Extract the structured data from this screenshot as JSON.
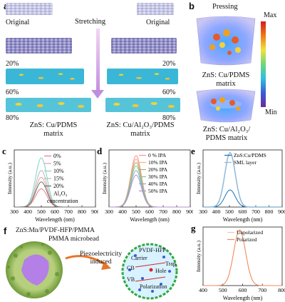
{
  "panel_a": {
    "label": "a",
    "original_left": "Original",
    "original_right": "Original",
    "stretching": "Stretching",
    "strain_left": [
      "20%",
      "60%",
      "80%"
    ],
    "strain_right": [
      "20%",
      "60%",
      "80%"
    ],
    "matrix_left_line1": "ZnS: Cu/PDMS",
    "matrix_left_line2": "matrix",
    "matrix_right_line1": "ZnS: Cu/Al₂O₃/PDMS",
    "matrix_right_line2": "matrix"
  },
  "panel_b": {
    "label": "b",
    "pressing": "Pressing",
    "colorbar_max": "Max",
    "colorbar_min": "Min",
    "matrix_top_line1": "ZnS: Cu/PDMS",
    "matrix_top_line2": "matrix",
    "matrix_bottom_line1": "ZnS: Cu/Al₂O₃/",
    "matrix_bottom_line2": "PDMS matrix"
  },
  "panel_f": {
    "label": "f",
    "title": "ZnS:Mn/PVDF-HFP/PMMA",
    "microbead": "PMMA microbead",
    "arrow_text_line1": "Piezoelectricity",
    "arrow_text_line2": "induced",
    "circle_labels": {
      "pvdf": "PVDF-HFP",
      "carrier": "Carrier",
      "cb": "CB",
      "hole": "Hole",
      "trap": "Trap",
      "vb": "VB",
      "polarization": "Polarization"
    }
  },
  "colors": {
    "c_series": [
      "#e57f7f",
      "#e8a0a0",
      "#7fd3c2",
      "#b8b8b8",
      "#6f6f6f"
    ],
    "d_series": [
      "#ff9090",
      "#f4b080",
      "#aab060",
      "#7fc7a0",
      "#80b0c8",
      "#b090c8"
    ],
    "e_series": [
      "#1a6fb0",
      "#8fb8d6"
    ],
    "g_series": [
      "#f7c4a8",
      "#f08a5a"
    ]
  },
  "chart_data": [
    {
      "panel": "c",
      "label": "c",
      "type": "line",
      "xlabel": "Wavelength (nm)",
      "ylabel": "Intensity (a.u.)",
      "xlim": [
        300,
        900
      ],
      "xticks": [
        "300",
        "400",
        "500",
        "600",
        "700",
        "800",
        "900"
      ],
      "legend_title_line1": "Al₂O₃",
      "legend_title_line2": "concentration",
      "peak": 500,
      "width": 42,
      "series": [
        {
          "name": "0%",
          "peak_value": 0.32
        },
        {
          "name": "5%",
          "peak_value": 0.52
        },
        {
          "name": "10%",
          "peak_value": 0.86
        },
        {
          "name": "15%",
          "peak_value": 0.64
        },
        {
          "name": "20%",
          "peak_value": 0.44
        }
      ]
    },
    {
      "panel": "d",
      "label": "d",
      "type": "line",
      "xlabel": "Wavelength (nm)",
      "ylabel": "Intensity (a.u.)",
      "xlim": [
        300,
        900
      ],
      "xticks": [
        "300",
        "400",
        "500",
        "600",
        "700",
        "800",
        "900"
      ],
      "peak": 500,
      "width": 40,
      "series": [
        {
          "name": "0 % IPA",
          "peak_value": 0.9
        },
        {
          "name": "10% IPA",
          "peak_value": 0.84
        },
        {
          "name": "20% IPA",
          "peak_value": 0.78
        },
        {
          "name": "30% IPA",
          "peak_value": 0.72
        },
        {
          "name": "40% IPA",
          "peak_value": 0.64
        },
        {
          "name": "50% IPA",
          "peak_value": 0.56
        }
      ]
    },
    {
      "panel": "e",
      "label": "e",
      "type": "line",
      "xlabel": "Wavelength (nm)",
      "ylabel": "Intensity (a.u.)",
      "xlim": [
        300,
        900
      ],
      "xticks": [
        "300",
        "400",
        "500",
        "600",
        "700",
        "800",
        "900"
      ],
      "peak": 505,
      "width": 40,
      "series": [
        {
          "name": "ZnS:Cu/PDMS",
          "peak_value": 0.3
        },
        {
          "name": "SML layer",
          "peak_value": 0.95
        }
      ]
    },
    {
      "panel": "g",
      "label": "g",
      "type": "line",
      "xlabel": "Wavelength (nm)",
      "ylabel": "Intensity (a.u.)",
      "xlim": [
        400,
        800
      ],
      "xticks": [
        "400",
        "500",
        "600",
        "700",
        "800"
      ],
      "peak": 585,
      "width": 30,
      "series": [
        {
          "name": "Unpolarized",
          "peak_value": 0.95
        },
        {
          "name": "Polarized",
          "peak_value": 0.95
        }
      ]
    }
  ]
}
